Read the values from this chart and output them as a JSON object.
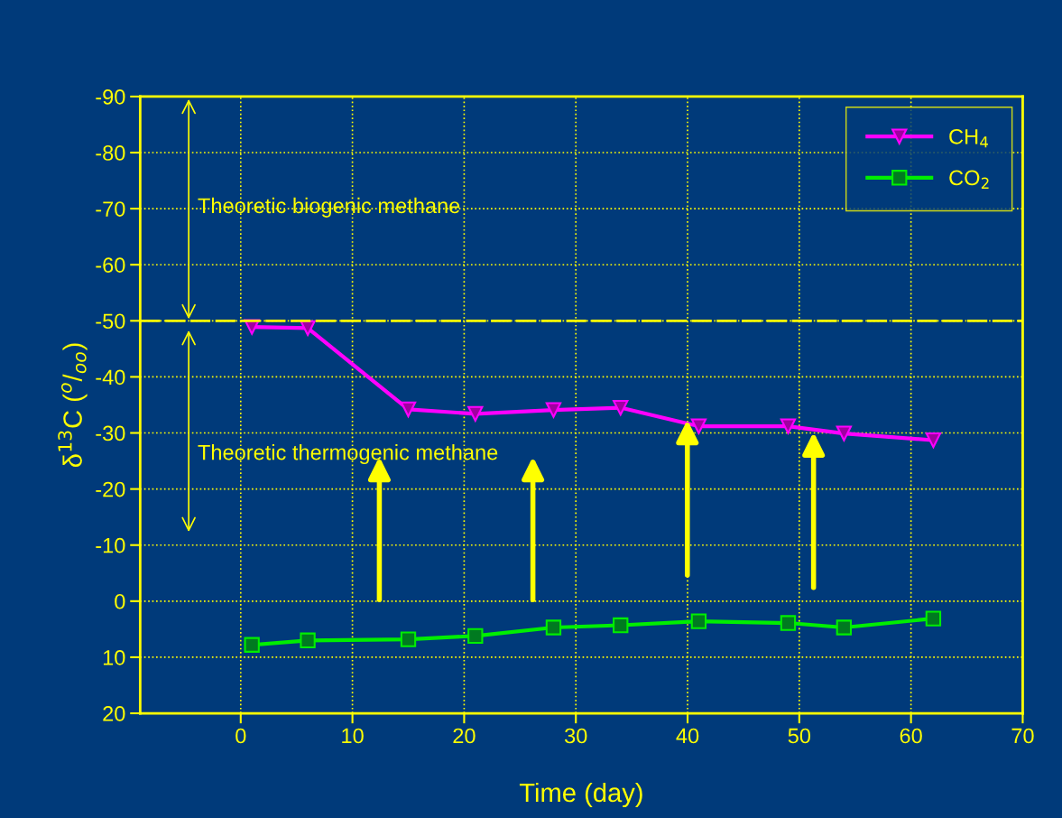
{
  "chart_data": {
    "type": "line",
    "xlabel": "Time (day)",
    "ylabel": "δ$^{13}$C ($^{o}$/$_{oo}$)",
    "x": [
      1,
      6,
      15,
      21,
      28,
      34,
      41,
      49,
      54,
      62
    ],
    "series": [
      {
        "name": "CH$_{4}$",
        "color": "#ff00ff",
        "marker": "triangle",
        "values": [
          -48.9,
          -48.7,
          -34.2,
          -33.4,
          -34.1,
          -34.5,
          -31.2,
          -31.2,
          -29.9,
          -28.7
        ]
      },
      {
        "name": "CO$_{2}$",
        "color": "#00ee00",
        "marker": "square",
        "values": [
          7.8,
          7.0,
          6.8,
          6.2,
          4.7,
          4.3,
          3.6,
          3.9,
          4.7,
          3.1
        ]
      }
    ],
    "xlim": [
      -9,
      70
    ],
    "xticks": [
      0,
      10,
      20,
      30,
      40,
      50,
      60,
      70
    ],
    "ylim": [
      20,
      -90
    ],
    "yticks": [
      -90,
      -80,
      -70,
      -60,
      -50,
      -40,
      -30,
      -20,
      -10,
      0,
      10,
      20
    ],
    "ref_lines": [
      {
        "axis": "y",
        "value": -50,
        "color": "#ffff00",
        "line_style": "dashed"
      }
    ],
    "annotations": [
      "Theoretic biogenic methane",
      "Theoretic thermogenic methane"
    ],
    "grid": true,
    "legend": "top right",
    "line_style": "solid"
  }
}
